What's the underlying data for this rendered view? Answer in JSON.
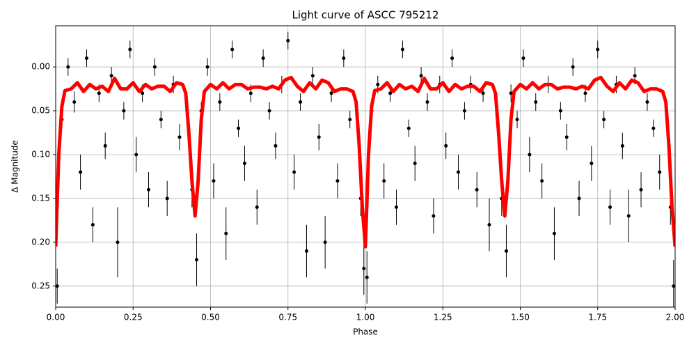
{
  "chart_data": {
    "type": "scatter",
    "title": "Light curve of ASCC 795212",
    "x_label": "Phase",
    "y_label": "Δ Magnitude",
    "xlim": [
      0,
      2
    ],
    "ylim": [
      -0.047,
      0.274
    ],
    "y_inverted": true,
    "grid": true,
    "xticks": [
      {
        "value": 0,
        "label": "0.00"
      },
      {
        "value": 0.25,
        "label": "0.25"
      },
      {
        "value": 0.5,
        "label": "0.50"
      },
      {
        "value": 0.75,
        "label": "0.75"
      },
      {
        "value": 1,
        "label": "1.00"
      },
      {
        "value": 1.25,
        "label": "1.25"
      },
      {
        "value": 1.5,
        "label": "1.50"
      },
      {
        "value": 1.75,
        "label": "1.75"
      },
      {
        "value": 2,
        "label": "2.00"
      }
    ],
    "yticks": [
      {
        "value": 0,
        "label": "0.00"
      },
      {
        "value": 0.05,
        "label": "0.05"
      },
      {
        "value": 0.1,
        "label": "0.10"
      },
      {
        "value": 0.15,
        "label": "0.15"
      },
      {
        "value": 0.2,
        "label": "0.20"
      },
      {
        "value": 0.25,
        "label": "0.25"
      }
    ],
    "series": [
      {
        "color": "#000000",
        "x": [
          0.005,
          0.02,
          0.04,
          0.06,
          0.08,
          0.1,
          0.12,
          0.14,
          0.16,
          0.18,
          0.2,
          0.22,
          0.24,
          0.26,
          0.28,
          0.3,
          0.32,
          0.34,
          0.36,
          0.38,
          0.4,
          0.44,
          0.455,
          0.47,
          0.49,
          0.51,
          0.53,
          0.55,
          0.57,
          0.59,
          0.61,
          0.63,
          0.65,
          0.67,
          0.69,
          0.71,
          0.73,
          0.75,
          0.77,
          0.79,
          0.81,
          0.83,
          0.85,
          0.87,
          0.89,
          0.91,
          0.93,
          0.95,
          0.985,
          0.995,
          1.005,
          1.02,
          1.04,
          1.06,
          1.08,
          1.1,
          1.12,
          1.14,
          1.16,
          1.18,
          1.2,
          1.22,
          1.24,
          1.26,
          1.28,
          1.3,
          1.32,
          1.34,
          1.36,
          1.38,
          1.4,
          1.44,
          1.455,
          1.47,
          1.49,
          1.51,
          1.53,
          1.55,
          1.57,
          1.59,
          1.61,
          1.63,
          1.65,
          1.67,
          1.69,
          1.71,
          1.73,
          1.75,
          1.77,
          1.79,
          1.81,
          1.83,
          1.85,
          1.87,
          1.89,
          1.91,
          1.93,
          1.95,
          1.985,
          1.995
        ],
        "values": [
          0.25,
          0.06,
          0.0,
          0.04,
          0.12,
          -0.01,
          0.18,
          0.03,
          0.09,
          0.01,
          0.2,
          0.05,
          -0.02,
          0.1,
          0.03,
          0.14,
          0.0,
          0.06,
          0.15,
          0.02,
          0.08,
          0.14,
          0.22,
          0.05,
          0.0,
          0.13,
          0.04,
          0.19,
          -0.02,
          0.07,
          0.11,
          0.03,
          0.16,
          -0.01,
          0.05,
          0.09,
          0.02,
          -0.03,
          0.12,
          0.04,
          0.21,
          0.01,
          0.08,
          0.2,
          0.03,
          0.13,
          -0.01,
          0.06,
          0.15,
          0.23,
          0.24,
          0.05,
          0.02,
          0.13,
          0.03,
          0.16,
          -0.02,
          0.07,
          0.11,
          0.01,
          0.04,
          0.17,
          0.02,
          0.09,
          -0.01,
          0.12,
          0.05,
          0.02,
          0.14,
          0.03,
          0.18,
          0.15,
          0.21,
          0.03,
          0.06,
          -0.01,
          0.1,
          0.04,
          0.13,
          0.02,
          0.19,
          0.05,
          0.08,
          0.0,
          0.15,
          0.03,
          0.11,
          -0.02,
          0.06,
          0.16,
          0.02,
          0.09,
          0.17,
          0.01,
          0.14,
          0.04,
          0.07,
          0.12,
          0.16,
          0.25
        ],
        "errors": [
          0.02,
          0.01,
          0.01,
          0.012,
          0.02,
          0.01,
          0.02,
          0.01,
          0.015,
          0.01,
          0.04,
          0.01,
          0.01,
          0.02,
          0.01,
          0.02,
          0.01,
          0.01,
          0.02,
          0.01,
          0.015,
          0.02,
          0.03,
          0.01,
          0.01,
          0.02,
          0.01,
          0.03,
          0.01,
          0.01,
          0.02,
          0.01,
          0.02,
          0.01,
          0.01,
          0.015,
          0.01,
          0.01,
          0.02,
          0.01,
          0.03,
          0.01,
          0.015,
          0.03,
          0.01,
          0.02,
          0.01,
          0.01,
          0.02,
          0.03,
          0.03,
          0.01,
          0.01,
          0.02,
          0.01,
          0.02,
          0.01,
          0.01,
          0.02,
          0.01,
          0.01,
          0.02,
          0.01,
          0.015,
          0.01,
          0.02,
          0.01,
          0.01,
          0.02,
          0.01,
          0.03,
          0.02,
          0.03,
          0.01,
          0.01,
          0.01,
          0.02,
          0.01,
          0.02,
          0.01,
          0.03,
          0.01,
          0.015,
          0.01,
          0.02,
          0.01,
          0.02,
          0.01,
          0.01,
          0.02,
          0.01,
          0.015,
          0.03,
          0.01,
          0.02,
          0.01,
          0.01,
          0.02,
          0.02,
          0.03
        ]
      },
      {
        "color": "#ff0000",
        "x": [
          0,
          0.01,
          0.02,
          0.03,
          0.05,
          0.07,
          0.09,
          0.11,
          0.13,
          0.15,
          0.17,
          0.19,
          0.21,
          0.23,
          0.25,
          0.27,
          0.29,
          0.31,
          0.33,
          0.35,
          0.37,
          0.39,
          0.41,
          0.42,
          0.43,
          0.44,
          0.45,
          0.46,
          0.47,
          0.48,
          0.5,
          0.52,
          0.54,
          0.56,
          0.58,
          0.6,
          0.62,
          0.64,
          0.66,
          0.68,
          0.7,
          0.72,
          0.74,
          0.76,
          0.78,
          0.8,
          0.82,
          0.84,
          0.86,
          0.88,
          0.9,
          0.92,
          0.94,
          0.96,
          0.97,
          0.98,
          0.99,
          1.0,
          1.01,
          1.02,
          1.03,
          1.05,
          1.07,
          1.09,
          1.11,
          1.13,
          1.15,
          1.17,
          1.19,
          1.21,
          1.23,
          1.25,
          1.27,
          1.29,
          1.31,
          1.33,
          1.35,
          1.37,
          1.39,
          1.41,
          1.42,
          1.43,
          1.44,
          1.45,
          1.46,
          1.47,
          1.48,
          1.5,
          1.52,
          1.54,
          1.56,
          1.58,
          1.6,
          1.62,
          1.64,
          1.66,
          1.68,
          1.7,
          1.72,
          1.74,
          1.76,
          1.78,
          1.8,
          1.82,
          1.84,
          1.86,
          1.88,
          1.9,
          1.92,
          1.94,
          1.96,
          1.97,
          1.98,
          1.99,
          2.0
        ],
        "values": [
          0.205,
          0.1,
          0.045,
          0.027,
          0.025,
          0.018,
          0.028,
          0.02,
          0.025,
          0.022,
          0.028,
          0.013,
          0.025,
          0.025,
          0.018,
          0.028,
          0.02,
          0.025,
          0.022,
          0.022,
          0.028,
          0.018,
          0.02,
          0.03,
          0.075,
          0.13,
          0.17,
          0.13,
          0.06,
          0.028,
          0.02,
          0.025,
          0.018,
          0.025,
          0.02,
          0.02,
          0.025,
          0.023,
          0.023,
          0.025,
          0.022,
          0.025,
          0.015,
          0.012,
          0.022,
          0.028,
          0.018,
          0.025,
          0.015,
          0.018,
          0.028,
          0.025,
          0.025,
          0.028,
          0.04,
          0.09,
          0.16,
          0.205,
          0.1,
          0.045,
          0.027,
          0.025,
          0.018,
          0.028,
          0.02,
          0.025,
          0.022,
          0.028,
          0.013,
          0.025,
          0.025,
          0.018,
          0.028,
          0.02,
          0.025,
          0.022,
          0.022,
          0.028,
          0.018,
          0.02,
          0.03,
          0.075,
          0.13,
          0.17,
          0.13,
          0.06,
          0.028,
          0.02,
          0.025,
          0.018,
          0.025,
          0.02,
          0.02,
          0.025,
          0.023,
          0.023,
          0.025,
          0.022,
          0.025,
          0.015,
          0.012,
          0.022,
          0.028,
          0.018,
          0.025,
          0.015,
          0.018,
          0.028,
          0.025,
          0.025,
          0.028,
          0.04,
          0.09,
          0.16,
          0.205
        ]
      }
    ]
  }
}
